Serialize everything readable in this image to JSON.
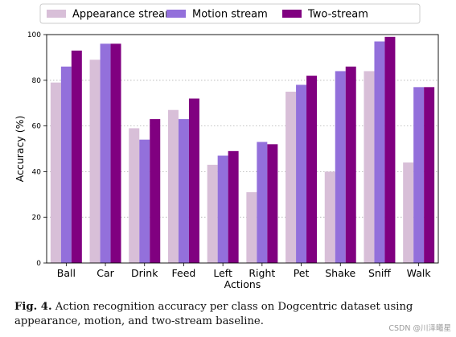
{
  "chart_data": {
    "type": "bar",
    "title": "",
    "xlabel": "Actions",
    "ylabel": "Accuracy (%)",
    "ylim": [
      0,
      100
    ],
    "yticks": [
      0,
      20,
      40,
      60,
      80,
      100
    ],
    "grid": "horizontal dotted",
    "legend_position": "top",
    "categories": [
      "Ball",
      "Car",
      "Drink",
      "Feed",
      "Left",
      "Right",
      "Pet",
      "Shake",
      "Sniff",
      "Walk"
    ],
    "series": [
      {
        "name": "Appearance stream",
        "color": "#d8bfd8",
        "values": [
          79,
          89,
          59,
          67,
          43,
          31,
          75,
          40,
          84,
          44
        ]
      },
      {
        "name": "Motion stream",
        "color": "#9370db",
        "values": [
          86,
          96,
          54,
          63,
          47,
          53,
          78,
          84,
          97,
          77
        ]
      },
      {
        "name": "Two-stream",
        "color": "#800080",
        "values": [
          93,
          96,
          63,
          72,
          49,
          52,
          82,
          86,
          99,
          77
        ]
      }
    ]
  },
  "caption": {
    "label": "Fig. 4.",
    "text": " Action recognition accuracy per class on Dogcentric dataset using appearance, motion, and two-stream baseline."
  },
  "watermark": "CSDN @川泽曦星"
}
